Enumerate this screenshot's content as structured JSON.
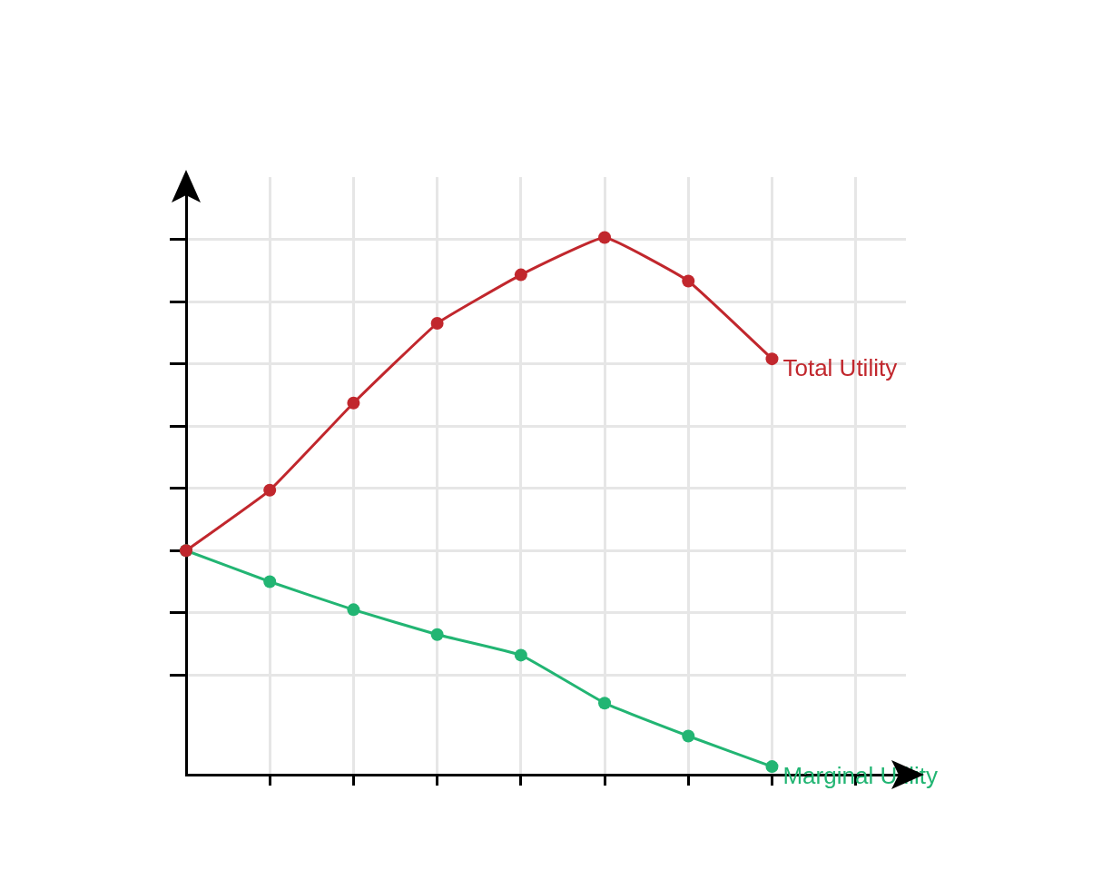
{
  "chart_data": {
    "type": "line",
    "x": [
      0,
      1,
      2,
      3,
      4,
      5,
      6,
      7
    ],
    "series": [
      {
        "name": "Total Utility",
        "color": "#c1272d",
        "marker": "circle",
        "values": [
          3.0,
          3.97,
          5.37,
          6.65,
          7.43,
          8.03,
          7.33,
          6.08
        ]
      },
      {
        "name": "Marginal Utility",
        "color": "#22b573",
        "marker": "circle",
        "values": [
          3.0,
          2.5,
          2.05,
          1.65,
          1.32,
          0.55,
          0.02,
          -0.47
        ]
      }
    ],
    "xlim": [
      0,
      8.6
    ],
    "xticks": [
      1,
      2,
      3,
      4,
      5,
      6,
      7,
      8
    ],
    "ylim": [
      -0.6,
      9
    ],
    "yticks": [
      1,
      2,
      3,
      4,
      5,
      6,
      7,
      8
    ],
    "grid": true,
    "tick_labels": false
  }
}
